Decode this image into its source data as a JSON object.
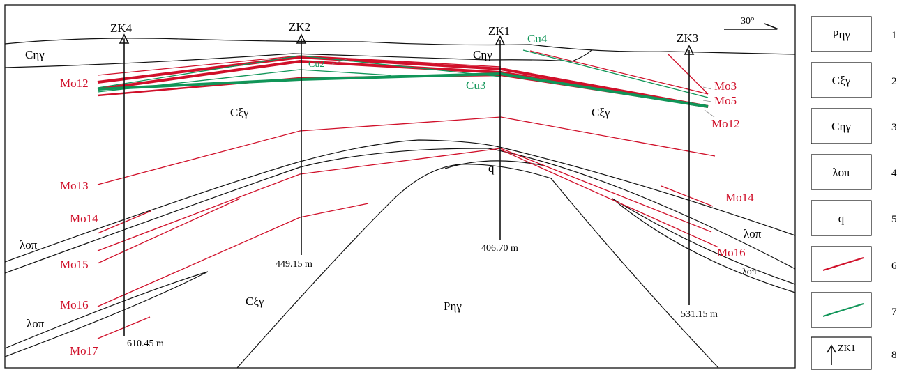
{
  "colors": {
    "mo_line": "#d0102a",
    "cu_line": "#109558",
    "black": "#111111"
  },
  "orientation": {
    "label": "30°",
    "icon": "arrow-right-icon"
  },
  "boreholes": [
    {
      "name": "ZK4",
      "depth": "610.45 m"
    },
    {
      "name": "ZK2",
      "depth": "449.15 m"
    },
    {
      "name": "ZK1",
      "depth": "406.70 m"
    },
    {
      "name": "ZK3",
      "depth": "531.15 m"
    }
  ],
  "units": {
    "c_eta_gamma": "Cηγ",
    "c_xi_gamma": "Cξγ",
    "p_eta_gamma": "Pηγ",
    "lambda_o_pi": "λοπ",
    "q": "q"
  },
  "orebodies": {
    "mo12": "Mo12",
    "mo13": "Mo13",
    "mo14": "Mo14",
    "mo15": "Mo15",
    "mo16": "Mo16",
    "mo17": "Mo17",
    "mo3": "Mo3",
    "mo5": "Mo5",
    "cu2": "Cu2",
    "cu3": "Cu3",
    "cu4": "Cu4"
  },
  "legend": [
    {
      "number": "1",
      "label": "Pηγ"
    },
    {
      "number": "2",
      "label": "Cξγ"
    },
    {
      "number": "3",
      "label": "Cηγ"
    },
    {
      "number": "4",
      "label": "λοπ"
    },
    {
      "number": "5",
      "label": "q"
    },
    {
      "number": "6",
      "label": "",
      "icon": "molybdenum-orebody-line-icon"
    },
    {
      "number": "7",
      "label": "",
      "icon": "copper-orebody-line-icon"
    },
    {
      "number": "8",
      "label": "ZK1",
      "icon": "borehole-arrow-icon"
    }
  ]
}
